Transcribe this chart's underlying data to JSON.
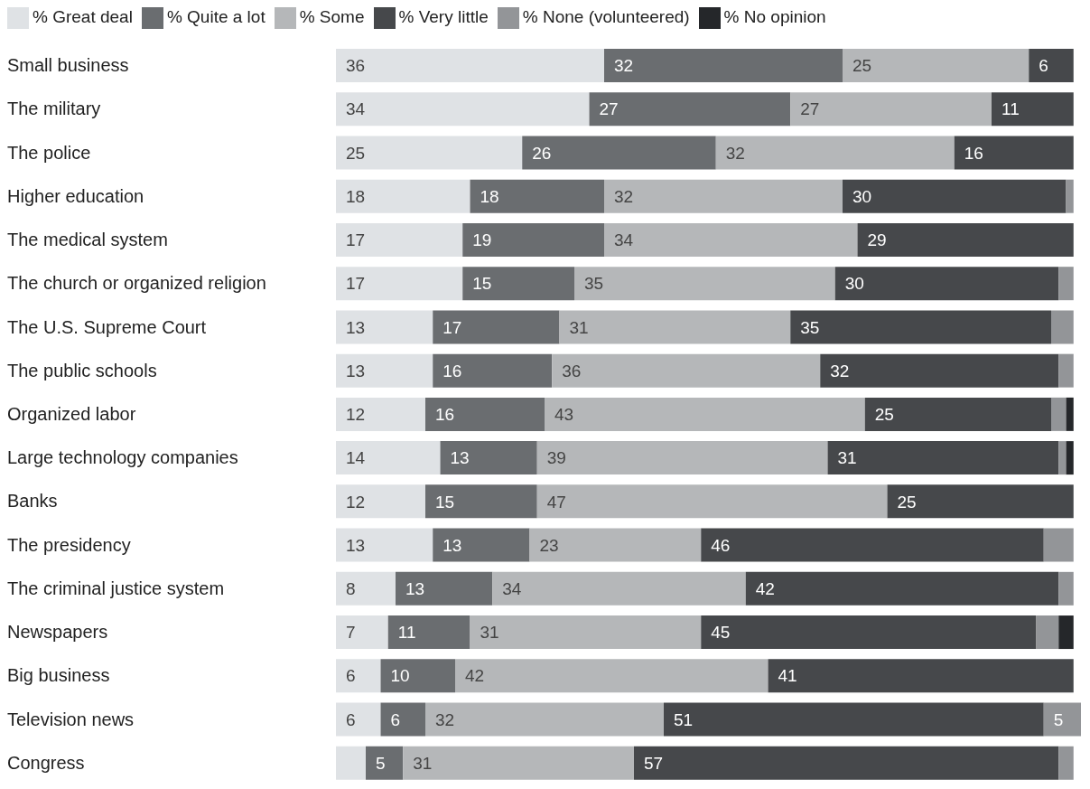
{
  "chart_data": {
    "type": "bar",
    "orientation": "horizontal",
    "stacked": true,
    "legend": "top",
    "grid": false,
    "tick_labels": "y",
    "categories": [
      "Small business",
      "The military",
      "The police",
      "Higher education",
      "The medical system",
      "The church or organized religion",
      "The U.S. Supreme Court",
      "The public schools",
      "Organized labor",
      "Large technology companies",
      "Banks",
      "The presidency",
      "The criminal justice system",
      "Newspapers",
      "Big business",
      "Television news",
      "Congress"
    ],
    "series": [
      {
        "name": "% Great deal",
        "color": "#dfe2e5",
        "values": [
          36,
          34,
          25,
          18,
          17,
          17,
          13,
          13,
          12,
          14,
          12,
          13,
          8,
          7,
          6,
          6,
          4
        ],
        "value_labels": [
          "36",
          "34",
          "25",
          "18",
          "17",
          "17",
          "13",
          "13",
          "12",
          "14",
          "12",
          "13",
          "8",
          "7",
          "6",
          "6",
          null
        ]
      },
      {
        "name": "% Quite a lot",
        "color": "#6a6d70",
        "values": [
          32,
          27,
          26,
          18,
          19,
          15,
          17,
          16,
          16,
          13,
          15,
          13,
          13,
          11,
          10,
          6,
          5
        ],
        "value_labels": [
          "32",
          "27",
          "26",
          "18",
          "19",
          "15",
          "17",
          "16",
          "16",
          "13",
          "15",
          "13",
          "13",
          "11",
          "10",
          "6",
          "5"
        ]
      },
      {
        "name": "% Some",
        "color": "#b5b7b9",
        "values": [
          25,
          27,
          32,
          32,
          34,
          35,
          31,
          36,
          43,
          39,
          47,
          23,
          34,
          31,
          42,
          32,
          31
        ],
        "value_labels": [
          "25",
          "27",
          "32",
          "32",
          "34",
          "35",
          "31",
          "36",
          "43",
          "39",
          "47",
          "23",
          "34",
          "31",
          "42",
          "32",
          "31"
        ]
      },
      {
        "name": "% Very little",
        "color": "#46484b",
        "values": [
          6,
          11,
          16,
          30,
          29,
          30,
          35,
          32,
          25,
          31,
          25,
          46,
          42,
          45,
          41,
          51,
          57
        ],
        "value_labels": [
          "6",
          "11",
          "16",
          "30",
          "29",
          "30",
          "35",
          "32",
          "25",
          "31",
          "25",
          "46",
          "42",
          "45",
          "41",
          "51",
          "57"
        ]
      },
      {
        "name": "% None (volunteered)",
        "color": "#939598",
        "values": [
          null,
          null,
          null,
          1,
          null,
          2,
          3,
          2,
          2,
          1,
          null,
          4,
          2,
          3,
          null,
          5,
          2
        ],
        "value_labels": [
          null,
          null,
          null,
          null,
          null,
          null,
          null,
          null,
          null,
          null,
          null,
          null,
          null,
          null,
          null,
          "5",
          null
        ]
      },
      {
        "name": "% No opinion",
        "color": "#25272a",
        "values": [
          null,
          null,
          null,
          null,
          null,
          null,
          null,
          null,
          1,
          1,
          null,
          null,
          null,
          2,
          null,
          null,
          null
        ],
        "value_labels": [
          null,
          null,
          null,
          null,
          null,
          null,
          null,
          null,
          null,
          null,
          null,
          null,
          null,
          null,
          null,
          null,
          null
        ]
      }
    ]
  }
}
